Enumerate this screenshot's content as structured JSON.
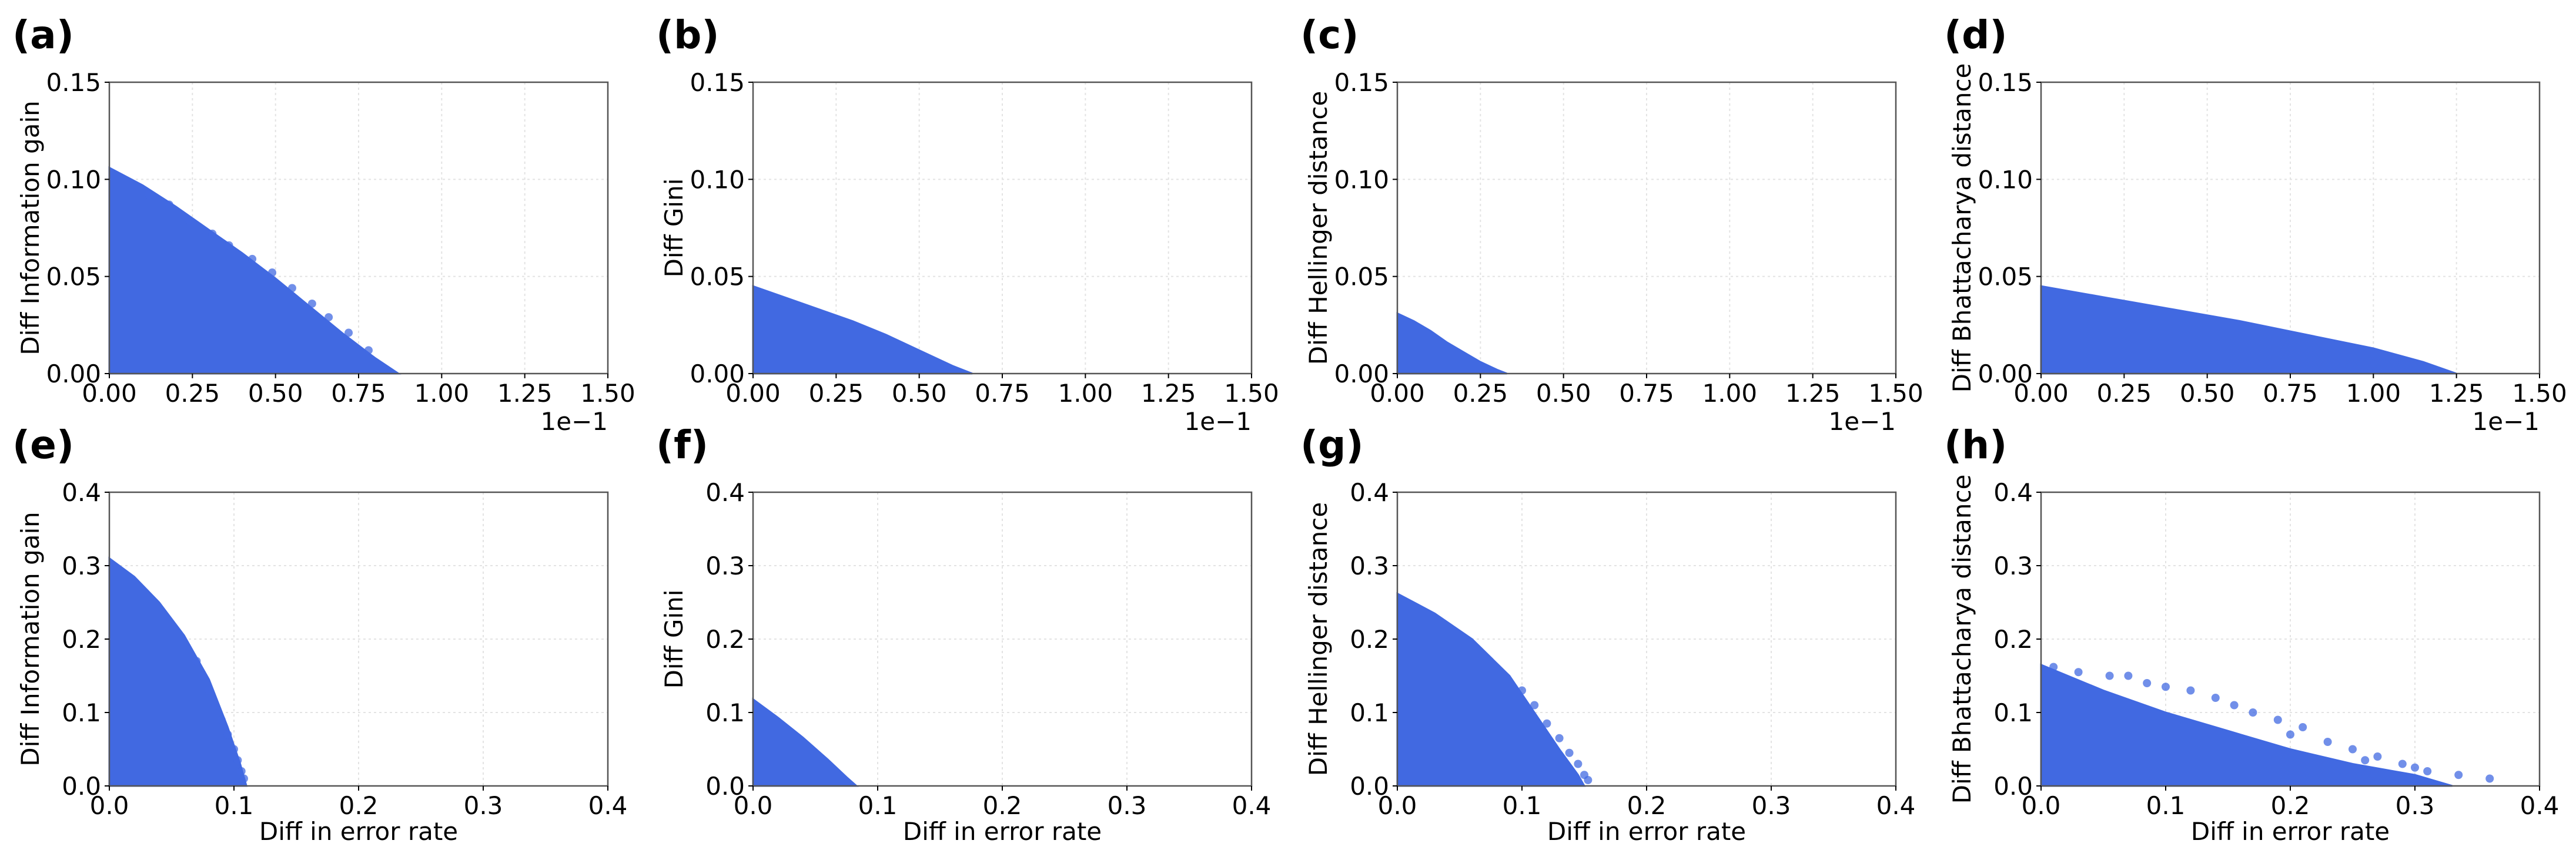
{
  "chart_data": [
    {
      "panel": "(a)",
      "type": "scatter",
      "xlabel": "",
      "ylabel": "Diff Information gain",
      "xlim": [
        0,
        0.15
      ],
      "ylim": [
        0,
        0.15
      ],
      "xticks": [
        0,
        0.025,
        0.05,
        0.075,
        0.1,
        0.125,
        0.15
      ],
      "xtick_labels": [
        "0.00",
        "0.25",
        "0.50",
        "0.75",
        "1.00",
        "1.25",
        "1.50"
      ],
      "yticks": [
        0,
        0.05,
        0.1,
        0.15
      ],
      "ytick_labels": [
        "0.00",
        "0.05",
        "0.10",
        "0.15"
      ],
      "x_offset_label": "1e−1",
      "grid": true,
      "series": [
        {
          "name": "Diff Information gain vs Diff in error rate",
          "upper_envelope": [
            [
              0,
              0.106
            ],
            [
              0.01,
              0.097
            ],
            [
              0.02,
              0.086
            ],
            [
              0.03,
              0.074
            ],
            [
              0.04,
              0.062
            ],
            [
              0.05,
              0.049
            ],
            [
              0.06,
              0.035
            ],
            [
              0.07,
              0.021
            ],
            [
              0.08,
              0.008
            ],
            [
              0.087,
              0
            ]
          ],
          "scatter_points": [
            [
              0.012,
              0.092
            ],
            [
              0.018,
              0.087
            ],
            [
              0.024,
              0.079
            ],
            [
              0.031,
              0.072
            ],
            [
              0.036,
              0.066
            ],
            [
              0.043,
              0.059
            ],
            [
              0.049,
              0.052
            ],
            [
              0.055,
              0.044
            ],
            [
              0.061,
              0.036
            ],
            [
              0.066,
              0.029
            ],
            [
              0.072,
              0.021
            ],
            [
              0.078,
              0.012
            ]
          ]
        }
      ]
    },
    {
      "panel": "(b)",
      "type": "scatter",
      "xlabel": "",
      "ylabel": "Diff Gini",
      "xlim": [
        0,
        0.15
      ],
      "ylim": [
        0,
        0.15
      ],
      "xticks": [
        0,
        0.025,
        0.05,
        0.075,
        0.1,
        0.125,
        0.15
      ],
      "xtick_labels": [
        "0.00",
        "0.25",
        "0.50",
        "0.75",
        "1.00",
        "1.25",
        "1.50"
      ],
      "yticks": [
        0,
        0.05,
        0.1,
        0.15
      ],
      "ytick_labels": [
        "0.00",
        "0.05",
        "0.10",
        "0.15"
      ],
      "x_offset_label": "1e−1",
      "grid": true,
      "series": [
        {
          "name": "Diff Gini vs Diff in error rate",
          "upper_envelope": [
            [
              0,
              0.045
            ],
            [
              0.01,
              0.039
            ],
            [
              0.02,
              0.033
            ],
            [
              0.03,
              0.027
            ],
            [
              0.04,
              0.02
            ],
            [
              0.05,
              0.012
            ],
            [
              0.06,
              0.004
            ],
            [
              0.066,
              0
            ]
          ],
          "scatter_points": []
        }
      ]
    },
    {
      "panel": "(c)",
      "type": "scatter",
      "xlabel": "",
      "ylabel": "Diff Hellinger distance",
      "xlim": [
        0,
        0.15
      ],
      "ylim": [
        0,
        0.15
      ],
      "xticks": [
        0,
        0.025,
        0.05,
        0.075,
        0.1,
        0.125,
        0.15
      ],
      "xtick_labels": [
        "0.00",
        "0.25",
        "0.50",
        "0.75",
        "1.00",
        "1.25",
        "1.50"
      ],
      "yticks": [
        0,
        0.05,
        0.1,
        0.15
      ],
      "ytick_labels": [
        "0.00",
        "0.05",
        "0.10",
        "0.15"
      ],
      "x_offset_label": "1e−1",
      "grid": true,
      "series": [
        {
          "name": "Diff Hellinger distance vs Diff in error rate",
          "upper_envelope": [
            [
              0,
              0.031
            ],
            [
              0.005,
              0.027
            ],
            [
              0.01,
              0.022
            ],
            [
              0.015,
              0.016
            ],
            [
              0.02,
              0.011
            ],
            [
              0.025,
              0.006
            ],
            [
              0.03,
              0.002
            ],
            [
              0.033,
              0
            ]
          ],
          "scatter_points": []
        }
      ]
    },
    {
      "panel": "(d)",
      "type": "scatter",
      "xlabel": "",
      "ylabel": "Diff Bhattacharya distance",
      "xlim": [
        0,
        0.15
      ],
      "ylim": [
        0,
        0.15
      ],
      "xticks": [
        0,
        0.025,
        0.05,
        0.075,
        0.1,
        0.125,
        0.15
      ],
      "xtick_labels": [
        "0.00",
        "0.25",
        "0.50",
        "0.75",
        "1.00",
        "1.25",
        "1.50"
      ],
      "yticks": [
        0,
        0.05,
        0.1,
        0.15
      ],
      "ytick_labels": [
        "0.00",
        "0.05",
        "0.10",
        "0.15"
      ],
      "x_offset_label": "1e−1",
      "grid": true,
      "series": [
        {
          "name": "Diff Bhattacharya distance vs Diff in error rate",
          "upper_envelope": [
            [
              0,
              0.045
            ],
            [
              0.02,
              0.039
            ],
            [
              0.04,
              0.033
            ],
            [
              0.06,
              0.027
            ],
            [
              0.08,
              0.02
            ],
            [
              0.1,
              0.013
            ],
            [
              0.115,
              0.006
            ],
            [
              0.125,
              0
            ]
          ],
          "scatter_points": []
        }
      ]
    },
    {
      "panel": "(e)",
      "type": "scatter",
      "xlabel": "Diff in error rate",
      "ylabel": "Diff Information gain",
      "xlim": [
        0,
        0.4
      ],
      "ylim": [
        0,
        0.4
      ],
      "xticks": [
        0,
        0.1,
        0.2,
        0.3,
        0.4
      ],
      "xtick_labels": [
        "0.0",
        "0.1",
        "0.2",
        "0.3",
        "0.4"
      ],
      "yticks": [
        0,
        0.1,
        0.2,
        0.3,
        0.4
      ],
      "ytick_labels": [
        "0.0",
        "0.1",
        "0.2",
        "0.3",
        "0.4"
      ],
      "x_offset_label": "",
      "grid": true,
      "series": [
        {
          "name": "Diff Information gain vs Diff in error rate",
          "upper_envelope": [
            [
              0,
              0.31
            ],
            [
              0.02,
              0.285
            ],
            [
              0.04,
              0.25
            ],
            [
              0.06,
              0.205
            ],
            [
              0.08,
              0.145
            ],
            [
              0.095,
              0.08
            ],
            [
              0.105,
              0.03
            ],
            [
              0.11,
              0
            ]
          ],
          "scatter_points": [
            [
              0.085,
              0.11
            ],
            [
              0.09,
              0.09
            ],
            [
              0.095,
              0.07
            ],
            [
              0.1,
              0.05
            ],
            [
              0.103,
              0.035
            ],
            [
              0.106,
              0.02
            ],
            [
              0.108,
              0.01
            ],
            [
              0.08,
              0.13
            ],
            [
              0.075,
              0.15
            ],
            [
              0.07,
              0.17
            ]
          ]
        }
      ]
    },
    {
      "panel": "(f)",
      "type": "scatter",
      "xlabel": "Diff in error rate",
      "ylabel": "Diff Gini",
      "xlim": [
        0,
        0.4
      ],
      "ylim": [
        0,
        0.4
      ],
      "xticks": [
        0,
        0.1,
        0.2,
        0.3,
        0.4
      ],
      "xtick_labels": [
        "0.0",
        "0.1",
        "0.2",
        "0.3",
        "0.4"
      ],
      "yticks": [
        0,
        0.1,
        0.2,
        0.3,
        0.4
      ],
      "ytick_labels": [
        "0.0",
        "0.1",
        "0.2",
        "0.3",
        "0.4"
      ],
      "x_offset_label": "",
      "grid": true,
      "series": [
        {
          "name": "Diff Gini vs Diff in error rate",
          "upper_envelope": [
            [
              0,
              0.118
            ],
            [
              0.02,
              0.093
            ],
            [
              0.04,
              0.066
            ],
            [
              0.06,
              0.036
            ],
            [
              0.075,
              0.012
            ],
            [
              0.083,
              0
            ]
          ],
          "scatter_points": []
        }
      ]
    },
    {
      "panel": "(g)",
      "type": "scatter",
      "xlabel": "Diff in error rate",
      "ylabel": "Diff Hellinger distance",
      "xlim": [
        0,
        0.4
      ],
      "ylim": [
        0,
        0.4
      ],
      "xticks": [
        0,
        0.1,
        0.2,
        0.3,
        0.4
      ],
      "xtick_labels": [
        "0.0",
        "0.1",
        "0.2",
        "0.3",
        "0.4"
      ],
      "yticks": [
        0,
        0.1,
        0.2,
        0.3,
        0.4
      ],
      "ytick_labels": [
        "0.0",
        "0.1",
        "0.2",
        "0.3",
        "0.4"
      ],
      "x_offset_label": "",
      "grid": true,
      "series": [
        {
          "name": "Diff Hellinger distance vs Diff in error rate",
          "upper_envelope": [
            [
              0,
              0.262
            ],
            [
              0.03,
              0.235
            ],
            [
              0.06,
              0.2
            ],
            [
              0.09,
              0.15
            ],
            [
              0.11,
              0.1
            ],
            [
              0.13,
              0.05
            ],
            [
              0.145,
              0.015
            ],
            [
              0.15,
              0
            ]
          ],
          "scatter_points": [
            [
              0.12,
              0.085
            ],
            [
              0.13,
              0.065
            ],
            [
              0.138,
              0.045
            ],
            [
              0.145,
              0.03
            ],
            [
              0.15,
              0.015
            ],
            [
              0.153,
              0.008
            ],
            [
              0.11,
              0.11
            ],
            [
              0.1,
              0.13
            ]
          ]
        }
      ]
    },
    {
      "panel": "(h)",
      "type": "scatter",
      "xlabel": "Diff in error rate",
      "ylabel": "Diff Bhattacharya distance",
      "xlim": [
        0,
        0.4
      ],
      "ylim": [
        0,
        0.4
      ],
      "xticks": [
        0,
        0.1,
        0.2,
        0.3,
        0.4
      ],
      "xtick_labels": [
        "0.0",
        "0.1",
        "0.2",
        "0.3",
        "0.4"
      ],
      "yticks": [
        0,
        0.1,
        0.2,
        0.3,
        0.4
      ],
      "ytick_labels": [
        "0.0",
        "0.1",
        "0.2",
        "0.3",
        "0.4"
      ],
      "x_offset_label": "",
      "grid": true,
      "series": [
        {
          "name": "Diff Bhattacharya distance vs Diff in error rate",
          "upper_envelope": [
            [
              0,
              0.165
            ],
            [
              0.05,
              0.13
            ],
            [
              0.1,
              0.1
            ],
            [
              0.15,
              0.075
            ],
            [
              0.2,
              0.05
            ],
            [
              0.25,
              0.03
            ],
            [
              0.3,
              0.015
            ],
            [
              0.33,
              0
            ]
          ],
          "scatter_points": [
            [
              0.01,
              0.162
            ],
            [
              0.03,
              0.155
            ],
            [
              0.055,
              0.15
            ],
            [
              0.07,
              0.15
            ],
            [
              0.085,
              0.14
            ],
            [
              0.1,
              0.135
            ],
            [
              0.12,
              0.13
            ],
            [
              0.14,
              0.12
            ],
            [
              0.155,
              0.11
            ],
            [
              0.17,
              0.1
            ],
            [
              0.19,
              0.09
            ],
            [
              0.21,
              0.08
            ],
            [
              0.23,
              0.06
            ],
            [
              0.25,
              0.05
            ],
            [
              0.27,
              0.04
            ],
            [
              0.29,
              0.03
            ],
            [
              0.31,
              0.02
            ],
            [
              0.335,
              0.015
            ],
            [
              0.36,
              0.01
            ],
            [
              0.2,
              0.07
            ],
            [
              0.26,
              0.035
            ],
            [
              0.3,
              0.025
            ]
          ]
        }
      ]
    }
  ]
}
